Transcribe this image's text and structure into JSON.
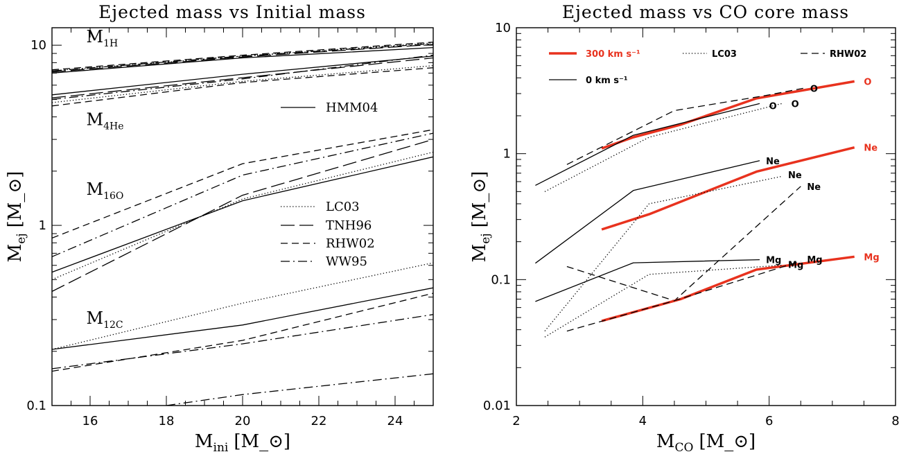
{
  "chart_data": [
    {
      "type": "line",
      "title": "Ejected mass vs Initial mass",
      "xlabel": "M_ini [M_⊙]",
      "ylabel": "M_ej [M_⊙]",
      "xlim": [
        15,
        25
      ],
      "ylim": [
        0.1,
        12.5
      ],
      "yscale": "log",
      "xticks": [
        16,
        18,
        20,
        22,
        24
      ],
      "yticks": [
        {
          "v": 0.1,
          "label": "0.1"
        },
        {
          "v": 1,
          "label": "1"
        },
        {
          "v": 10,
          "label": "10"
        }
      ],
      "legend": [
        {
          "name": "HMM04",
          "style": "solid"
        },
        {
          "name": "LC03",
          "style": "dotted"
        },
        {
          "name": "TNH96",
          "style": "longdash"
        },
        {
          "name": "RHW02",
          "style": "dash"
        },
        {
          "name": "WW95",
          "style": "dashdot"
        }
      ],
      "annotations": [
        {
          "base": "M",
          "sub": "1H",
          "x": 15.9,
          "y": 10.4
        },
        {
          "base": "M",
          "sub": "4He",
          "x": 15.9,
          "y": 3.6
        },
        {
          "base": "M",
          "sub": "16O",
          "x": 15.9,
          "y": 1.48
        },
        {
          "base": "M",
          "sub": "12C",
          "x": 15.9,
          "y": 0.285
        }
      ],
      "series": [
        {
          "element": "H",
          "model": "HMM04",
          "style": "solid",
          "x": [
            15,
            20,
            25
          ],
          "y": [
            7.0,
            8.5,
            9.7
          ]
        },
        {
          "element": "H",
          "model": "LC03",
          "style": "dotted",
          "x": [
            15,
            20,
            25
          ],
          "y": [
            7.2,
            8.7,
            10.3
          ]
        },
        {
          "element": "H",
          "model": "TNH96",
          "style": "longdash",
          "x": [
            15,
            20,
            25
          ],
          "y": [
            7.1,
            8.6,
            10.1
          ]
        },
        {
          "element": "H",
          "model": "RHW02",
          "style": "dash",
          "x": [
            15,
            20,
            25
          ],
          "y": [
            7.3,
            8.8,
            10.4
          ]
        },
        {
          "element": "H",
          "model": "WW95",
          "style": "dashdot",
          "x": [
            15,
            20,
            25
          ],
          "y": [
            7.2,
            8.7,
            10.2
          ]
        },
        {
          "element": "He",
          "model": "HMM04",
          "style": "solid",
          "x": [
            15,
            20,
            25
          ],
          "y": [
            5.3,
            6.9,
            8.7
          ]
        },
        {
          "element": "He",
          "model": "LC03",
          "style": "dotted",
          "x": [
            15,
            20,
            25
          ],
          "y": [
            4.8,
            6.3,
            7.7
          ]
        },
        {
          "element": "He",
          "model": "TNH96",
          "style": "longdash",
          "x": [
            15,
            20,
            25
          ],
          "y": [
            5.1,
            6.6,
            8.5
          ]
        },
        {
          "element": "He",
          "model": "RHW02",
          "style": "dash",
          "x": [
            15,
            20,
            25
          ],
          "y": [
            4.6,
            6.2,
            7.5
          ]
        },
        {
          "element": "He",
          "model": "WW95",
          "style": "dashdot",
          "x": [
            15,
            20,
            25
          ],
          "y": [
            5.0,
            6.5,
            8.8
          ]
        },
        {
          "element": "O",
          "model": "HMM04",
          "style": "solid",
          "x": [
            15,
            20,
            25
          ],
          "y": [
            0.55,
            1.37,
            2.4
          ]
        },
        {
          "element": "O",
          "model": "LC03",
          "style": "dotted",
          "x": [
            15,
            20,
            25
          ],
          "y": [
            0.5,
            1.4,
            2.55
          ]
        },
        {
          "element": "O",
          "model": "TNH96",
          "style": "longdash",
          "x": [
            15,
            20,
            25
          ],
          "y": [
            0.43,
            1.47,
            3.0
          ]
        },
        {
          "element": "O",
          "model": "RHW02",
          "style": "dash",
          "x": [
            15,
            20,
            25
          ],
          "y": [
            0.85,
            2.2,
            3.4
          ]
        },
        {
          "element": "O",
          "model": "WW95",
          "style": "dashdot",
          "x": [
            15,
            20,
            25
          ],
          "y": [
            0.67,
            1.9,
            3.25
          ]
        },
        {
          "element": "C",
          "model": "HMM04",
          "style": "solid",
          "x": [
            15,
            20,
            25
          ],
          "y": [
            0.205,
            0.28,
            0.45
          ]
        },
        {
          "element": "C",
          "model": "LC03",
          "style": "dotted",
          "x": [
            15,
            20,
            25
          ],
          "y": [
            0.205,
            0.37,
            0.62
          ]
        },
        {
          "element": "C",
          "model": "RHW02",
          "style": "dash",
          "x": [
            15,
            20,
            25
          ],
          "y": [
            0.155,
            0.23,
            0.42
          ]
        },
        {
          "element": "C",
          "model": "WW95",
          "style": "dashdot",
          "x": [
            15,
            20,
            25
          ],
          "y": [
            0.16,
            0.22,
            0.32
          ]
        },
        {
          "element": "C",
          "model": "WW95",
          "style": "dashdot",
          "x": [
            18,
            20,
            25
          ],
          "y": [
            0.1,
            0.115,
            0.15
          ]
        }
      ]
    },
    {
      "type": "line",
      "title": "Ejected mass vs CO core mass",
      "xlabel": "M_CO [M_⊙]",
      "ylabel": "M_ej [M_⊙]",
      "xlim": [
        2,
        8
      ],
      "ylim": [
        0.01,
        10
      ],
      "yscale": "log",
      "xticks": [
        2,
        4,
        6,
        8
      ],
      "yticks": [
        {
          "v": 0.01,
          "label": "0.01"
        },
        {
          "v": 0.1,
          "label": "0.1"
        },
        {
          "v": 1,
          "label": "1"
        },
        {
          "v": 10,
          "label": "10"
        }
      ],
      "accent_color": "#e8321e",
      "legend": [
        {
          "name": "300 km s⁻¹",
          "style": "thickred"
        },
        {
          "name": "LC03",
          "style": "dotted"
        },
        {
          "name": "RHW02",
          "style": "dash"
        },
        {
          "name": "0 km s⁻¹",
          "style": "solid"
        }
      ],
      "series": [
        {
          "element": "O",
          "model": "300 km s⁻¹",
          "style": "thickred",
          "x": [
            3.35,
            3.85,
            4.6,
            5.8,
            7.35
          ],
          "y": [
            1.1,
            1.35,
            1.7,
            2.75,
            3.75
          ],
          "label": "O",
          "label_at": [
            7.5,
            3.75
          ]
        },
        {
          "element": "O",
          "model": "0 km s⁻¹",
          "style": "solid",
          "x": [
            2.3,
            3.85,
            5.85
          ],
          "y": [
            0.56,
            1.4,
            2.5
          ],
          "label": "O",
          "label_at": [
            6.0,
            2.4
          ]
        },
        {
          "element": "O",
          "model": "LC03",
          "style": "dotted",
          "x": [
            2.45,
            4.1,
            6.2
          ],
          "y": [
            0.5,
            1.35,
            2.5
          ],
          "label": "O",
          "label_at": [
            6.35,
            2.5
          ]
        },
        {
          "element": "O",
          "model": "RHW02",
          "style": "dash",
          "x": [
            2.8,
            4.5,
            5.95,
            6.6
          ],
          "y": [
            0.82,
            2.2,
            2.9,
            3.35
          ],
          "label": "O",
          "label_at": [
            6.65,
            3.3
          ]
        },
        {
          "element": "Ne",
          "model": "300 km s⁻¹",
          "style": "thickred",
          "x": [
            3.35,
            4.1,
            5.8,
            7.35
          ],
          "y": [
            0.25,
            0.33,
            0.72,
            1.12
          ],
          "label": "Ne",
          "label_at": [
            7.5,
            1.12
          ]
        },
        {
          "element": "Ne",
          "model": "0 km s⁻¹",
          "style": "solid",
          "x": [
            2.3,
            3.85,
            5.85
          ],
          "y": [
            0.135,
            0.51,
            0.88
          ],
          "label": "Ne",
          "label_at": [
            5.95,
            0.88
          ]
        },
        {
          "element": "Ne",
          "model": "LC03",
          "style": "dotted",
          "x": [
            2.45,
            4.1,
            6.2
          ],
          "y": [
            0.039,
            0.4,
            0.66
          ],
          "label": "Ne",
          "label_at": [
            6.3,
            0.68
          ]
        },
        {
          "element": "Ne",
          "model": "RHW02",
          "style": "dash",
          "x": [
            2.8,
            4.5,
            6.5
          ],
          "y": [
            0.127,
            0.068,
            0.55
          ],
          "label": "Ne",
          "label_at": [
            6.6,
            0.55
          ]
        },
        {
          "element": "Mg",
          "model": "300 km s⁻¹",
          "style": "thickred",
          "x": [
            3.35,
            4.6,
            5.8,
            7.35
          ],
          "y": [
            0.047,
            0.07,
            0.12,
            0.152
          ],
          "label": "Mg",
          "label_at": [
            7.5,
            0.152
          ]
        },
        {
          "element": "Mg",
          "model": "0 km s⁻¹",
          "style": "solid",
          "x": [
            2.3,
            3.85,
            5.85
          ],
          "y": [
            0.067,
            0.136,
            0.144
          ],
          "label": "Mg",
          "label_at": [
            5.95,
            0.144
          ]
        },
        {
          "element": "Mg",
          "model": "LC03",
          "style": "dotted",
          "x": [
            2.45,
            4.1,
            6.2
          ],
          "y": [
            0.035,
            0.11,
            0.13
          ],
          "label": "Mg",
          "label_at": [
            6.3,
            0.132
          ]
        },
        {
          "element": "Mg",
          "model": "RHW02",
          "style": "dash",
          "x": [
            2.8,
            4.5,
            6.5
          ],
          "y": [
            0.039,
            0.068,
            0.14
          ],
          "label": "Mg",
          "label_at": [
            6.6,
            0.145
          ]
        }
      ]
    }
  ]
}
